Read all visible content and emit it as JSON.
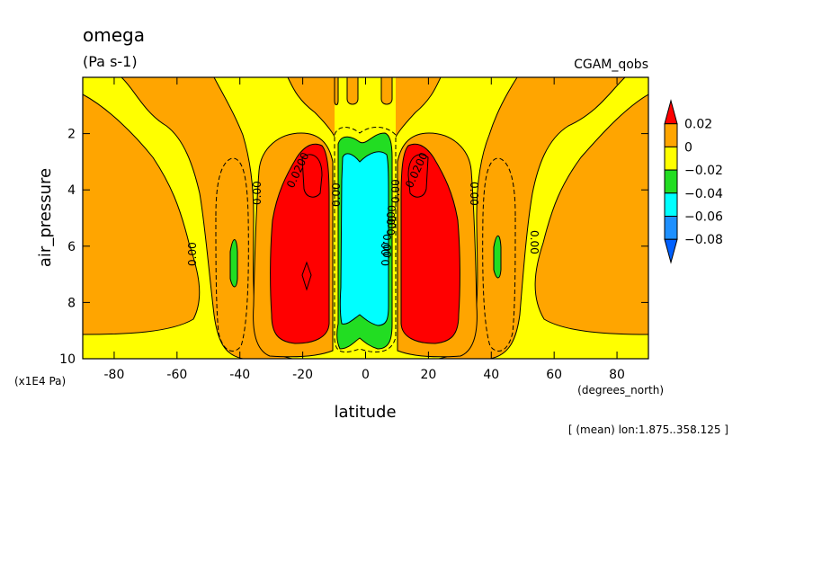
{
  "chart_data": {
    "type": "contour",
    "title": "omega",
    "units": "(Pa s-1)",
    "dataset": "CGAM_qobs",
    "xlabel": "latitude",
    "xunits": "(degrees_north)",
    "ylabel": "air_pressure",
    "yunits": "(x1E4 Pa)",
    "subtitle": "[ (mean) lon:1.875..358.125 ]",
    "xlim": [
      -90,
      90
    ],
    "ylim": [
      10,
      0
    ],
    "x_ticks": [
      "-80",
      "-60",
      "-40",
      "-20",
      "0",
      "20",
      "40",
      "60",
      "80"
    ],
    "y_ticks": [
      "2",
      "4",
      "6",
      "8",
      "10"
    ],
    "contour_labels": [
      "0.00",
      "0.00",
      "0.0200",
      "0.00",
      "0.00",
      "0.00",
      "0.00",
      "0.0200",
      "0.00",
      "0.00",
      "0.00",
      "0.00"
    ],
    "colorbar": {
      "labels": [
        "0.02",
        "0",
        "-0.02",
        "-0.04",
        "-0.06",
        "-0.08"
      ],
      "colors": [
        "#ff0000",
        "#ffa500",
        "#ffff00",
        "#22dd22",
        "#00ffff",
        "#1e90ff",
        "#0060ff"
      ]
    },
    "features": [
      {
        "region": "subtropical descent (red, > 0.02)",
        "lat_range": [
          -31,
          -10
        ],
        "p_range": [
          3,
          9.3
        ]
      },
      {
        "region": "subtropical descent (red, > 0.02)",
        "lat_range": [
          10,
          31
        ],
        "p_range": [
          3,
          9.3
        ]
      },
      {
        "region": "equatorial ascent (cyan, -0.06 to -0.04)",
        "lat_range": [
          -7,
          7
        ],
        "p_range": [
          3.5,
          9
        ]
      },
      {
        "region": "midlatitude ascent (green, -0.04 to -0.02)",
        "lat_range": [
          -43,
          -40
        ],
        "p_range": [
          5.8,
          7.5
        ]
      },
      {
        "region": "midlatitude ascent (green, -0.04 to -0.02)",
        "lat_range": [
          40,
          43
        ],
        "p_range": [
          5.8,
          7.0
        ]
      }
    ]
  }
}
